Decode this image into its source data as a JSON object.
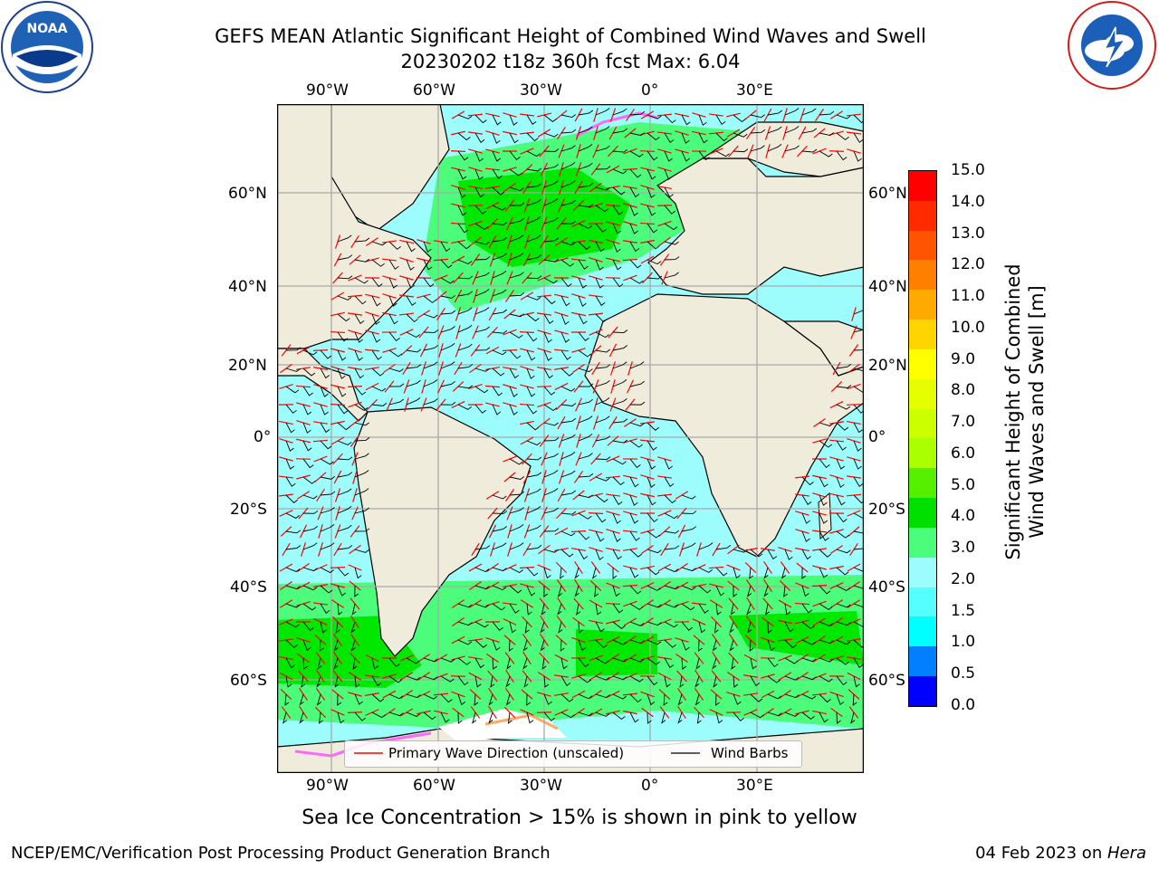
{
  "header": {
    "title_line1": "GEFS MEAN Atlantic Significant Height of Combined Wind Waves and Swell",
    "title_line2": "20230202 t18z 360h fcst   Max: 6.04"
  },
  "map": {
    "lon_labels_top": [
      "90°W",
      "60°W",
      "30°W",
      "0°",
      "30°E"
    ],
    "lon_labels_bottom": [
      "90°W",
      "60°W",
      "30°W",
      "0°",
      "30°E"
    ],
    "lat_labels_left": [
      "60°N",
      "40°N",
      "20°N",
      "0°",
      "20°S",
      "40°S",
      "60°S"
    ],
    "lat_labels_right": [
      "60°N",
      "40°N",
      "20°N",
      "0°",
      "20°S",
      "40°S",
      "60°S"
    ],
    "land_color": "#efecdc",
    "ocean_colors": {
      "calm": "#9dfdfd",
      "moderate": "#4cfd7c",
      "high": "#00e800"
    }
  },
  "legend": {
    "wave_direction_label": "Primary Wave Direction (unscaled)",
    "wind_barbs_label": "Wind Barbs",
    "wave_color": "#ff0000",
    "barb_color": "#000000"
  },
  "colorbar": {
    "label_line1": "Significant Height of Combined",
    "label_line2": "Wind Waves and Swell [m]",
    "ticks": [
      "15.0",
      "14.0",
      "13.0",
      "12.0",
      "11.0",
      "10.0",
      "9.0",
      "8.0",
      "7.0",
      "6.0",
      "5.0",
      "4.0",
      "3.0",
      "2.0",
      "1.5",
      "1.0",
      "0.5",
      "0.0"
    ],
    "colors_top_to_bottom": [
      "#ff0000",
      "#ff2a00",
      "#ff5500",
      "#ff8000",
      "#ffaa00",
      "#ffd500",
      "#ffff00",
      "#e6ff00",
      "#ccff00",
      "#aaff00",
      "#55f000",
      "#00e000",
      "#4cfd7c",
      "#9dfdfd",
      "#55ffff",
      "#00ffff",
      "#0080ff",
      "#0000ff"
    ]
  },
  "notes": {
    "sea_ice": "Sea Ice Concentration > 15% is shown in pink to yellow"
  },
  "footer": {
    "left": "NCEP/EMC/Verification Post Processing Product Generation Branch",
    "date_prefix": "04 Feb 2023 on ",
    "machine": "Hera"
  },
  "logos": {
    "noaa": "NOAA",
    "nws": "NATIONAL WEATHER SERVICE"
  }
}
